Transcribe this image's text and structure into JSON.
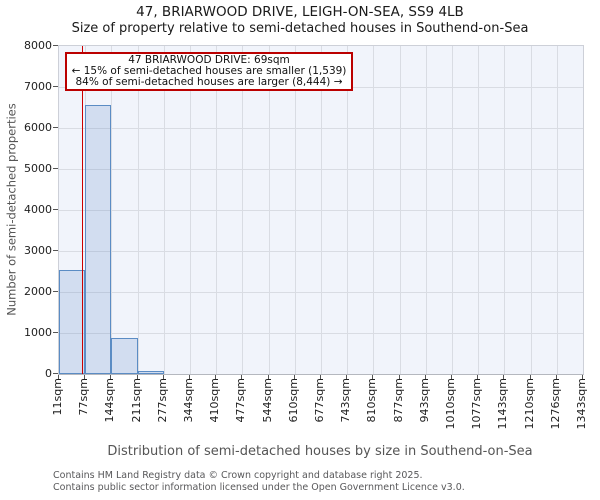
{
  "title": "47, BRIARWOOD DRIVE, LEIGH-ON-SEA, SS9 4LB",
  "subtitle": "Size of property relative to semi-detached houses in Southend-on-Sea",
  "annotation": {
    "line1": "47 BRIARWOOD DRIVE: 69sqm",
    "line2": "← 15% of semi-detached houses are smaller (1,539)",
    "line3": "84% of semi-detached houses are larger (8,444) →"
  },
  "chart_data": {
    "type": "bar",
    "title": "47, BRIARWOOD DRIVE, LEIGH-ON-SEA, SS9 4LB",
    "subtitle": "Size of property relative to semi-detached houses in Southend-on-Sea",
    "categories": [
      "11sqm",
      "77sqm",
      "144sqm",
      "211sqm",
      "277sqm",
      "344sqm",
      "410sqm",
      "477sqm",
      "544sqm",
      "610sqm",
      "677sqm",
      "743sqm",
      "810sqm",
      "877sqm",
      "943sqm",
      "1010sqm",
      "1077sqm",
      "1143sqm",
      "1210sqm",
      "1276sqm",
      "1343sqm"
    ],
    "bin_edges_sqm": [
      11,
      77,
      144,
      211,
      277,
      344,
      410,
      477,
      544,
      610,
      677,
      743,
      810,
      877,
      943,
      1010,
      1077,
      1143,
      1210,
      1276,
      1343
    ],
    "values": [
      2530,
      6550,
      890,
      70,
      0,
      0,
      0,
      0,
      0,
      0,
      0,
      0,
      0,
      0,
      0,
      0,
      0,
      0,
      0,
      0
    ],
    "marker": {
      "label": "47 BRIARWOOD DRIVE",
      "value_sqm": 69
    },
    "x_min_sqm": 11,
    "x_max_sqm": 1343,
    "xlabel": "Distribution of semi-detached houses by size in Southend-on-Sea",
    "ylabel": "Number of semi-detached properties",
    "ylim": [
      0,
      8000
    ],
    "ytick_step": 1000,
    "grid": true,
    "legend": "none",
    "colors": {
      "bar_fill": "rgba(100,140,200,0.22)",
      "bar_border": "#5b8cc4",
      "marker_line": "#cc0000",
      "annotation_border": "#bb0000",
      "plot_background": "#f1f4fb",
      "grid_line": "#d9dce3"
    }
  },
  "footer": {
    "line1": "Contains HM Land Registry data © Crown copyright and database right 2025.",
    "line2": "Contains public sector information licensed under the Open Government Licence v3.0."
  }
}
